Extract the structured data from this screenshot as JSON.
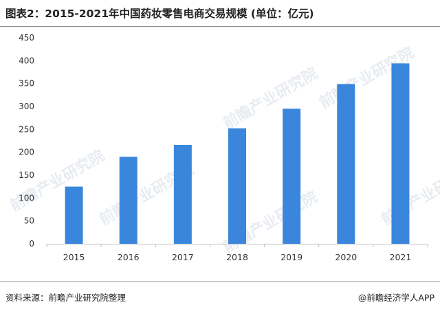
{
  "header": {
    "title": "图表2：2015-2021年中国药妆零售电商交易规模 (单位：亿元)"
  },
  "footer": {
    "source": "资料来源：前瞻产业研究院整理",
    "credit": "@前瞻经济学人APP"
  },
  "watermark": {
    "text": "前瞻产业研究院"
  },
  "colors": {
    "bar": "#3a86dc",
    "axis": "#bfbfbf",
    "text": "#333333"
  },
  "chart_data": {
    "type": "bar",
    "title": "图表2：2015-2021年中国药妆零售电商交易规模 (单位：亿元)",
    "xlabel": "",
    "ylabel": "",
    "categories": [
      "2015",
      "2016",
      "2017",
      "2018",
      "2019",
      "2020",
      "2021"
    ],
    "values": [
      125,
      190,
      216,
      252,
      295,
      349,
      394
    ],
    "ylim": [
      0,
      450
    ],
    "yticks": [
      "0",
      "50",
      "100",
      "150",
      "200",
      "250",
      "300",
      "350",
      "400",
      "450"
    ],
    "grid": false,
    "legend": "none"
  }
}
